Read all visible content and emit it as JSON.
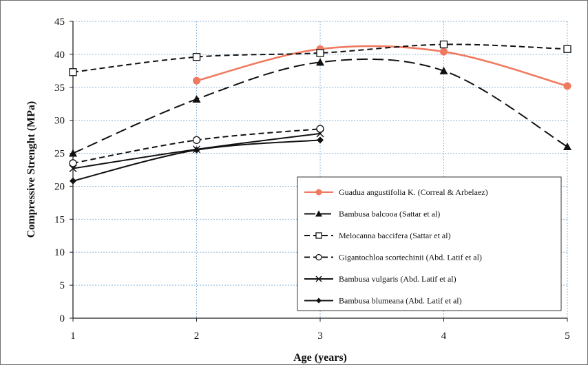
{
  "chart_data": {
    "type": "line",
    "title": "",
    "xlabel": "Age (years)",
    "ylabel": "Compressive Strenght (MPa)",
    "x_ticks": [
      1,
      2,
      3,
      4,
      5
    ],
    "y_ticks": [
      0,
      5,
      10,
      15,
      20,
      25,
      30,
      35,
      40,
      45
    ],
    "xlim": [
      1,
      5
    ],
    "ylim": [
      0,
      45
    ],
    "grid": "dotted-both",
    "legend_position": "lower-right",
    "series": [
      {
        "name": "Guadua angustifolia K. (Correal & Arbelaez)",
        "color": "#f07a60",
        "dash": "solid",
        "marker": "filled-circle",
        "points": [
          [
            2,
            36.0
          ],
          [
            3,
            40.8
          ],
          [
            4,
            40.4
          ],
          [
            5,
            35.2
          ]
        ]
      },
      {
        "name": "Bambusa balcooa (Sattar et al)",
        "color": "#111111",
        "dash": "long-dash",
        "marker": "filled-triangle",
        "points": [
          [
            1,
            25.0
          ],
          [
            2,
            33.2
          ],
          [
            3,
            38.8
          ],
          [
            4,
            37.5
          ],
          [
            5,
            26.0
          ]
        ]
      },
      {
        "name": "Melocanna baccifera (Sattar et al)",
        "color": "#111111",
        "dash": "short-dash",
        "marker": "open-square",
        "points": [
          [
            1,
            37.3
          ],
          [
            2,
            39.6
          ],
          [
            3,
            40.2
          ],
          [
            4,
            41.5
          ],
          [
            5,
            40.8
          ]
        ]
      },
      {
        "name": "Gigantochloa scortechinii (Abd. Latif et al)",
        "color": "#111111",
        "dash": "short-dash",
        "marker": "open-circle",
        "points": [
          [
            1,
            23.5
          ],
          [
            2,
            27.0
          ],
          [
            3,
            28.7
          ]
        ]
      },
      {
        "name": "Bambusa vulgaris (Abd. Latif et al)",
        "color": "#111111",
        "dash": "solid",
        "marker": "cross",
        "points": [
          [
            1,
            22.7
          ],
          [
            2,
            25.6
          ],
          [
            3,
            28.0
          ]
        ]
      },
      {
        "name": "Bambusa blumeana (Abd. Latif et al)",
        "color": "#111111",
        "dash": "solid",
        "marker": "filled-diamond",
        "points": [
          [
            1,
            20.8
          ],
          [
            2,
            25.5
          ],
          [
            3,
            27.0
          ]
        ]
      }
    ]
  }
}
